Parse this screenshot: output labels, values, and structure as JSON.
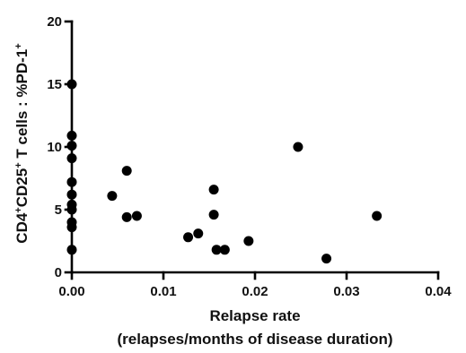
{
  "chart_data": {
    "type": "scatter",
    "title": "",
    "xlabel_line1": "Relapse rate",
    "xlabel_line2": "(relapses/months of disease duration)",
    "ylabel": {
      "base1": "CD4",
      "sup1": "+",
      "base2": "CD25",
      "sup2": "+",
      "base3": " T cells : %PD-1",
      "sup3": "+"
    },
    "xlim": [
      0,
      0.04
    ],
    "ylim": [
      0,
      20
    ],
    "x_ticks": [
      0,
      0.01,
      0.02,
      0.03,
      0.04
    ],
    "x_tick_labels": [
      "0.00",
      "0.01",
      "0.02",
      "0.03",
      "0.04"
    ],
    "y_ticks": [
      0,
      5,
      10,
      15,
      20
    ],
    "y_tick_labels": [
      "0",
      "5",
      "10",
      "15",
      "20"
    ],
    "grid": false,
    "marker_color": "#000000",
    "series": [
      {
        "points": [
          {
            "x": 0.0,
            "y": 15.0
          },
          {
            "x": 0.0,
            "y": 10.9
          },
          {
            "x": 0.0,
            "y": 10.1
          },
          {
            "x": 0.0,
            "y": 9.1
          },
          {
            "x": 0.0,
            "y": 7.2
          },
          {
            "x": 0.0,
            "y": 6.2
          },
          {
            "x": 0.0,
            "y": 5.4
          },
          {
            "x": 0.0,
            "y": 5.0
          },
          {
            "x": 0.0,
            "y": 4.0
          },
          {
            "x": 0.0,
            "y": 3.6
          },
          {
            "x": 0.0,
            "y": 1.8
          },
          {
            "x": 0.0044,
            "y": 6.1
          },
          {
            "x": 0.006,
            "y": 8.1
          },
          {
            "x": 0.006,
            "y": 4.4
          },
          {
            "x": 0.0071,
            "y": 4.5
          },
          {
            "x": 0.0127,
            "y": 2.8
          },
          {
            "x": 0.0138,
            "y": 3.1
          },
          {
            "x": 0.0155,
            "y": 6.6
          },
          {
            "x": 0.0155,
            "y": 4.6
          },
          {
            "x": 0.0158,
            "y": 1.8
          },
          {
            "x": 0.0167,
            "y": 1.8
          },
          {
            "x": 0.0193,
            "y": 2.5
          },
          {
            "x": 0.0247,
            "y": 10.0
          },
          {
            "x": 0.0278,
            "y": 1.1
          },
          {
            "x": 0.0333,
            "y": 4.5
          }
        ]
      }
    ]
  }
}
